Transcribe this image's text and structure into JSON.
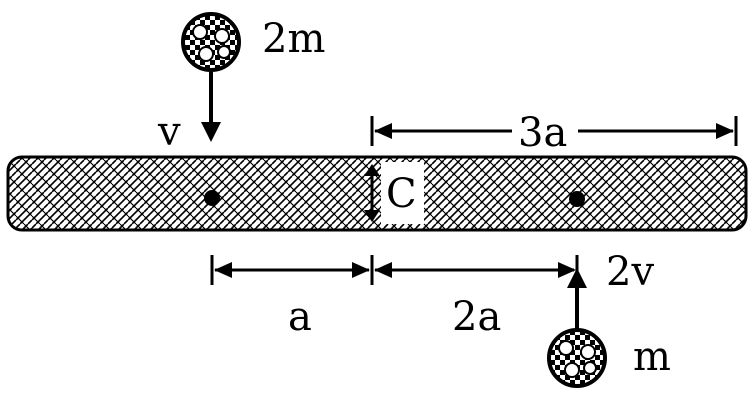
{
  "labels": {
    "mass_top": "2m",
    "velocity_top": "v",
    "length_full_right": "3a",
    "center": "C",
    "dist_left": "a",
    "dist_right": "2a",
    "velocity_bottom": "2v",
    "mass_bottom": "m"
  },
  "icons": {
    "ball": "checkered-ball-icon"
  },
  "colors": {
    "ink": "#000000",
    "background": "#ffffff"
  }
}
